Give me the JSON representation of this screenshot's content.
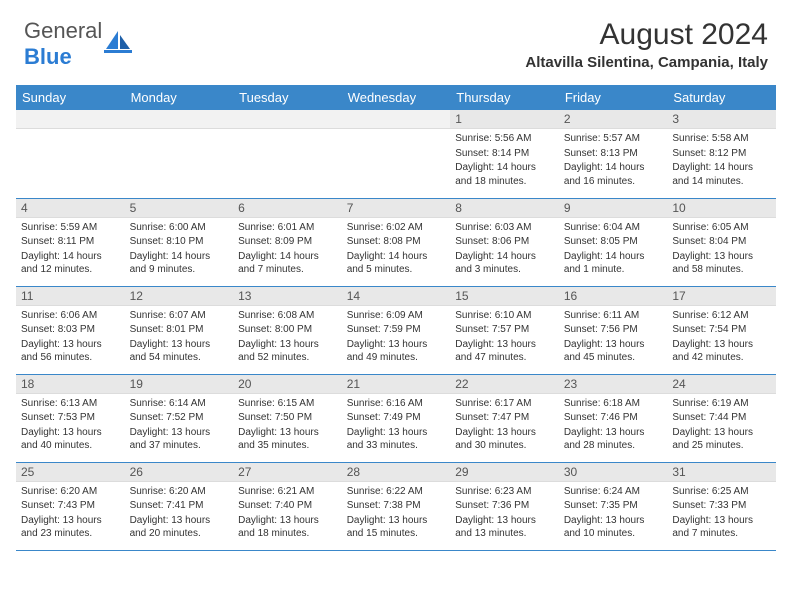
{
  "logo": {
    "text1": "General",
    "text2": "Blue"
  },
  "title": "August 2024",
  "subtitle": "Altavilla Silentina, Campania, Italy",
  "colors": {
    "header_bg": "#3a87c9",
    "header_fg": "#ffffff",
    "daynum_bg": "#e8e8e8",
    "daynum_empty_bg": "#f2f2f2",
    "row_border": "#3a87c9",
    "text": "#333333"
  },
  "day_headers": [
    "Sunday",
    "Monday",
    "Tuesday",
    "Wednesday",
    "Thursday",
    "Friday",
    "Saturday"
  ],
  "weeks": [
    [
      {
        "n": "",
        "sr": "",
        "ss": "",
        "dl": ""
      },
      {
        "n": "",
        "sr": "",
        "ss": "",
        "dl": ""
      },
      {
        "n": "",
        "sr": "",
        "ss": "",
        "dl": ""
      },
      {
        "n": "",
        "sr": "",
        "ss": "",
        "dl": ""
      },
      {
        "n": "1",
        "sr": "5:56 AM",
        "ss": "8:14 PM",
        "dl": "14 hours and 18 minutes."
      },
      {
        "n": "2",
        "sr": "5:57 AM",
        "ss": "8:13 PM",
        "dl": "14 hours and 16 minutes."
      },
      {
        "n": "3",
        "sr": "5:58 AM",
        "ss": "8:12 PM",
        "dl": "14 hours and 14 minutes."
      }
    ],
    [
      {
        "n": "4",
        "sr": "5:59 AM",
        "ss": "8:11 PM",
        "dl": "14 hours and 12 minutes."
      },
      {
        "n": "5",
        "sr": "6:00 AM",
        "ss": "8:10 PM",
        "dl": "14 hours and 9 minutes."
      },
      {
        "n": "6",
        "sr": "6:01 AM",
        "ss": "8:09 PM",
        "dl": "14 hours and 7 minutes."
      },
      {
        "n": "7",
        "sr": "6:02 AM",
        "ss": "8:08 PM",
        "dl": "14 hours and 5 minutes."
      },
      {
        "n": "8",
        "sr": "6:03 AM",
        "ss": "8:06 PM",
        "dl": "14 hours and 3 minutes."
      },
      {
        "n": "9",
        "sr": "6:04 AM",
        "ss": "8:05 PM",
        "dl": "14 hours and 1 minute."
      },
      {
        "n": "10",
        "sr": "6:05 AM",
        "ss": "8:04 PM",
        "dl": "13 hours and 58 minutes."
      }
    ],
    [
      {
        "n": "11",
        "sr": "6:06 AM",
        "ss": "8:03 PM",
        "dl": "13 hours and 56 minutes."
      },
      {
        "n": "12",
        "sr": "6:07 AM",
        "ss": "8:01 PM",
        "dl": "13 hours and 54 minutes."
      },
      {
        "n": "13",
        "sr": "6:08 AM",
        "ss": "8:00 PM",
        "dl": "13 hours and 52 minutes."
      },
      {
        "n": "14",
        "sr": "6:09 AM",
        "ss": "7:59 PM",
        "dl": "13 hours and 49 minutes."
      },
      {
        "n": "15",
        "sr": "6:10 AM",
        "ss": "7:57 PM",
        "dl": "13 hours and 47 minutes."
      },
      {
        "n": "16",
        "sr": "6:11 AM",
        "ss": "7:56 PM",
        "dl": "13 hours and 45 minutes."
      },
      {
        "n": "17",
        "sr": "6:12 AM",
        "ss": "7:54 PM",
        "dl": "13 hours and 42 minutes."
      }
    ],
    [
      {
        "n": "18",
        "sr": "6:13 AM",
        "ss": "7:53 PM",
        "dl": "13 hours and 40 minutes."
      },
      {
        "n": "19",
        "sr": "6:14 AM",
        "ss": "7:52 PM",
        "dl": "13 hours and 37 minutes."
      },
      {
        "n": "20",
        "sr": "6:15 AM",
        "ss": "7:50 PM",
        "dl": "13 hours and 35 minutes."
      },
      {
        "n": "21",
        "sr": "6:16 AM",
        "ss": "7:49 PM",
        "dl": "13 hours and 33 minutes."
      },
      {
        "n": "22",
        "sr": "6:17 AM",
        "ss": "7:47 PM",
        "dl": "13 hours and 30 minutes."
      },
      {
        "n": "23",
        "sr": "6:18 AM",
        "ss": "7:46 PM",
        "dl": "13 hours and 28 minutes."
      },
      {
        "n": "24",
        "sr": "6:19 AM",
        "ss": "7:44 PM",
        "dl": "13 hours and 25 minutes."
      }
    ],
    [
      {
        "n": "25",
        "sr": "6:20 AM",
        "ss": "7:43 PM",
        "dl": "13 hours and 23 minutes."
      },
      {
        "n": "26",
        "sr": "6:20 AM",
        "ss": "7:41 PM",
        "dl": "13 hours and 20 minutes."
      },
      {
        "n": "27",
        "sr": "6:21 AM",
        "ss": "7:40 PM",
        "dl": "13 hours and 18 minutes."
      },
      {
        "n": "28",
        "sr": "6:22 AM",
        "ss": "7:38 PM",
        "dl": "13 hours and 15 minutes."
      },
      {
        "n": "29",
        "sr": "6:23 AM",
        "ss": "7:36 PM",
        "dl": "13 hours and 13 minutes."
      },
      {
        "n": "30",
        "sr": "6:24 AM",
        "ss": "7:35 PM",
        "dl": "13 hours and 10 minutes."
      },
      {
        "n": "31",
        "sr": "6:25 AM",
        "ss": "7:33 PM",
        "dl": "13 hours and 7 minutes."
      }
    ]
  ],
  "labels": {
    "sunrise": "Sunrise:",
    "sunset": "Sunset:",
    "daylight": "Daylight:"
  }
}
